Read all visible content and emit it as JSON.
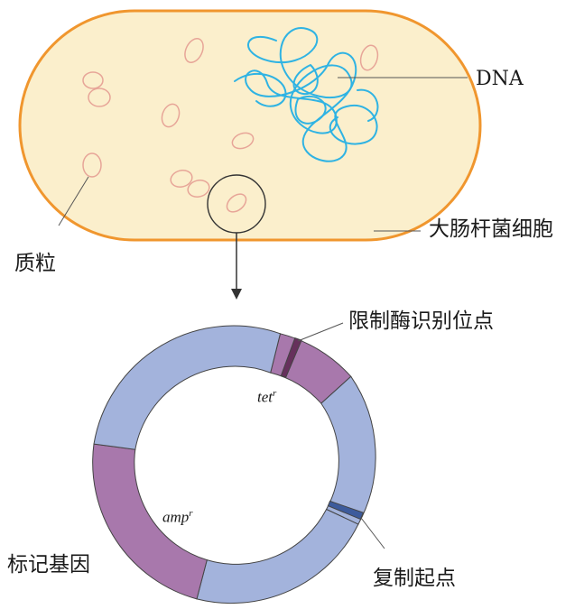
{
  "cell": {
    "dna_label": "DNA",
    "cell_label": "大肠杆菌细胞",
    "plasmid_label": "质粒"
  },
  "plasmid_map": {
    "restriction_site_label": "限制酶识别位点",
    "marker_gene_label": "标记基因",
    "origin_label": "复制起点",
    "tet_gene": {
      "name": "tet",
      "superscript": "r"
    },
    "amp_gene": {
      "name": "amp",
      "superscript": "r"
    }
  },
  "colors": {
    "cell_fill": "#fbefcc",
    "cell_border": "#f0962e",
    "plasmid_stroke": "#e7a598",
    "dna_strand": "#2fb3e3",
    "backbone": "#a3b3dc",
    "marker_gene": "#a878ac",
    "restriction_site": "#66305c",
    "origin": "#3d5b9c"
  }
}
